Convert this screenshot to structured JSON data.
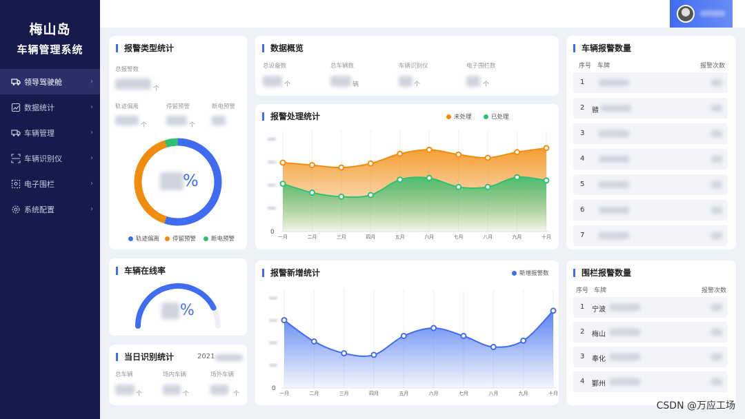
{
  "brand": {
    "line1": "梅山岛",
    "line2": "车辆管理系统"
  },
  "nav": [
    {
      "label": "领导驾驶舱",
      "icon": "truck-icon",
      "active": true
    },
    {
      "label": "数据统计",
      "icon": "chart-icon"
    },
    {
      "label": "车辆管理",
      "icon": "truck-icon"
    },
    {
      "label": "车辆识别仪",
      "icon": "scan-icon"
    },
    {
      "label": "电子围栏",
      "icon": "fence-icon"
    },
    {
      "label": "系统配置",
      "icon": "gear-icon"
    }
  ],
  "alarm_type": {
    "title": "报警类型统计",
    "total_label": "总报警数",
    "total_unit": "个",
    "sub_labels": [
      "轨迹偏离",
      "停留预警",
      "断电预警"
    ],
    "sub_unit": "个",
    "center_suffix": "%",
    "legend": [
      {
        "name": "轨迹偏离",
        "color": "#3f6cf0"
      },
      {
        "name": "停留预警",
        "color": "#f28c0f"
      },
      {
        "name": "断电预警",
        "color": "#2fbf71"
      }
    ],
    "donut_share": [
      0.55,
      0.4,
      0.05
    ]
  },
  "overview": {
    "title": "数据概览",
    "items": [
      {
        "label": "总设备数",
        "unit": "个"
      },
      {
        "label": "总车辆数",
        "unit": "辆"
      },
      {
        "label": "车辆识别仪",
        "unit": "个"
      },
      {
        "label": "电子围栏数",
        "unit": "个"
      }
    ]
  },
  "vehicle_alarm": {
    "title": "车辆报警数量",
    "headers": {
      "no": "序号",
      "plate": "车牌",
      "count": "报警次数"
    },
    "rows": [
      {
        "no": "1",
        "plate": ""
      },
      {
        "no": "2",
        "plate": "赣"
      },
      {
        "no": "3",
        "plate": ""
      },
      {
        "no": "4",
        "plate": ""
      },
      {
        "no": "5",
        "plate": ""
      },
      {
        "no": "6",
        "plate": ""
      },
      {
        "no": "7",
        "plate": ""
      }
    ]
  },
  "processing": {
    "title": "报警处理统计",
    "legend": [
      {
        "name": "未处理",
        "color": "#f28c0f"
      },
      {
        "name": "已处理",
        "color": "#2fbf71"
      }
    ],
    "y_zero": "0",
    "chart_data": {
      "type": "area",
      "x": [
        "一月",
        "二月",
        "三月",
        "四月",
        "五月",
        "六月",
        "七月",
        "八月",
        "九月",
        "十月"
      ],
      "ylim": [
        0,
        125
      ],
      "series": [
        {
          "name": "未处理",
          "values": [
            85,
            82,
            79,
            84,
            96,
            101,
            95,
            91,
            98,
            103
          ]
        },
        {
          "name": "已处理",
          "values": [
            59,
            48,
            43,
            45,
            64,
            66,
            55,
            55,
            67,
            63
          ]
        }
      ]
    }
  },
  "online": {
    "title": "车辆在线率",
    "suffix": "%",
    "rate_fraction": 0.85
  },
  "daily": {
    "title": "当日识别统计",
    "date_prefix": "2021",
    "labels": [
      "总车辆",
      "场内车辆",
      "场外车辆"
    ],
    "unit": "个"
  },
  "new_alarm": {
    "title": "报警新增统计",
    "legend": [
      {
        "name": "新增报警数",
        "color": "#3f6cf0"
      }
    ],
    "y_zero": "0",
    "chart_data": {
      "type": "area",
      "x": [
        "一月",
        "二月",
        "三月",
        "四月",
        "五月",
        "六月",
        "七月",
        "八月",
        "九月",
        "十月"
      ],
      "ylim": [
        0,
        125
      ],
      "series": [
        {
          "name": "新增报警数",
          "values": [
            86,
            59,
            44,
            42,
            66,
            76,
            66,
            52,
            60,
            98
          ]
        }
      ]
    }
  },
  "fence_alarm": {
    "title": "围栏报警数量",
    "headers": {
      "no": "序号",
      "plate": "车牌",
      "count": "报警次数"
    },
    "rows": [
      {
        "no": "1",
        "plate": "宁波"
      },
      {
        "no": "2",
        "plate": "梅山"
      },
      {
        "no": "3",
        "plate": "奉化"
      },
      {
        "no": "4",
        "plate": "鄞州"
      }
    ]
  },
  "watermark": "CSDN @万应工场"
}
